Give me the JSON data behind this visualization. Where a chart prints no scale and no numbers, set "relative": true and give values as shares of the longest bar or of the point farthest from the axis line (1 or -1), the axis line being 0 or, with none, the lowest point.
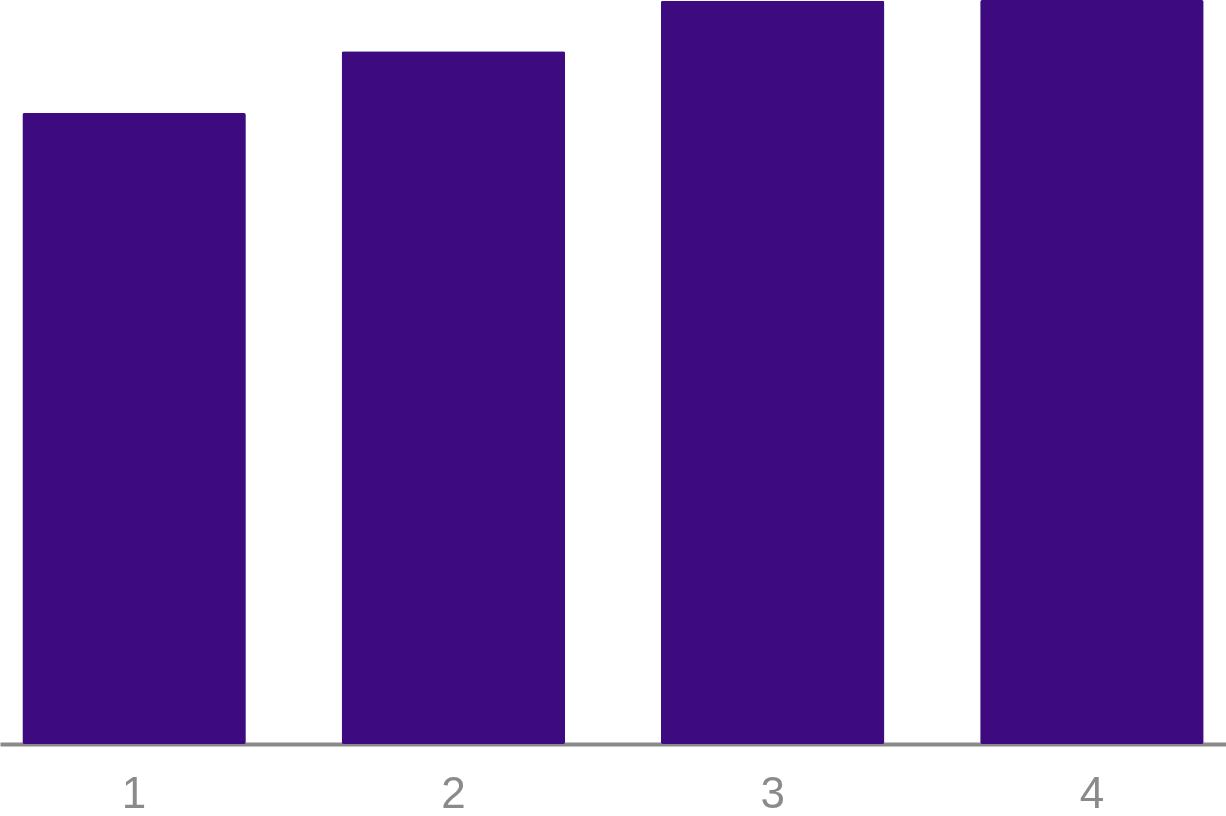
{
  "chart_data": {
    "type": "bar",
    "relative": true,
    "categories": [
      "1",
      "2",
      "3",
      "4"
    ],
    "values": [
      0.848,
      0.931,
      0.999,
      1
    ],
    "color": "#3d0b7f"
  }
}
